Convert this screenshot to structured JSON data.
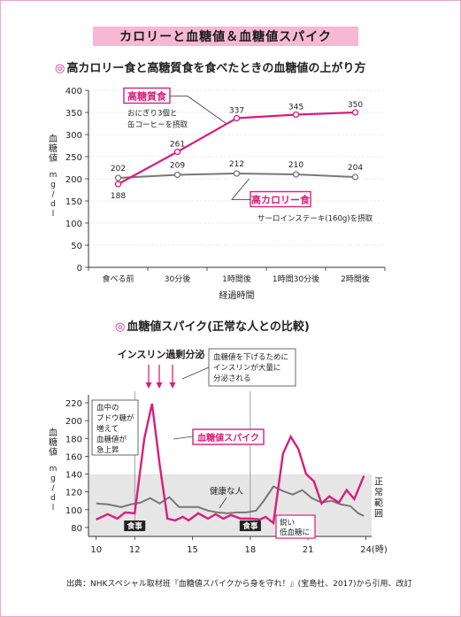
{
  "page_title": "カロリーと血糖値＆血糖値スパイク",
  "section1_title": "高カロリー食と高糖質食を食べたときの血糖値の上がり方",
  "section2_title": "血糖値スパイク(正常な人との比較)",
  "source": "出典：NHKスペシャル取材班『血糖値スパイクから身を守れ！』(宝島社、2017)から引用、改訂",
  "colors": {
    "accent": "#d91e7a",
    "gray_series": "#777777",
    "title_bg": "#f6b8d3",
    "band": "#e6e6e6"
  },
  "chart_data": [
    {
      "type": "line",
      "title": "高カロリー食と高糖質食を食べたときの血糖値の上がり方",
      "xlabel": "経過時間",
      "ylabel": "血糖値(mg/dl)",
      "ylim": [
        0,
        400
      ],
      "yticks": [
        0,
        50,
        100,
        150,
        200,
        250,
        300,
        350,
        400
      ],
      "categories": [
        "食べる前",
        "30分後",
        "1時間後",
        "1時間30分後",
        "2時間後"
      ],
      "series": [
        {
          "name": "高糖質食",
          "note_lines": [
            "おにぎり3個と",
            "缶コーヒーを摂取"
          ],
          "color": "#d91e7a",
          "values": [
            188,
            261,
            337,
            345,
            350
          ]
        },
        {
          "name": "高カロリー食",
          "note_lines": [
            "サーロインステーキ(160g)を摂取"
          ],
          "color": "#777777",
          "values": [
            202,
            209,
            212,
            210,
            204
          ]
        }
      ]
    },
    {
      "type": "line",
      "title": "血糖値スパイク(正常な人との比較)",
      "xlabel": "(時)",
      "ylabel": "血糖値(mg/dl)",
      "ylim": [
        70,
        225
      ],
      "yticks": [
        80,
        100,
        120,
        140,
        160,
        180,
        200,
        220
      ],
      "xticks": [
        "10",
        "12",
        "15",
        "18",
        "21",
        "24(時)"
      ],
      "xtick_values": [
        10,
        12,
        15,
        18,
        21,
        24
      ],
      "xlim": [
        9.6,
        24.3
      ],
      "normal_band": {
        "label": "正常範囲",
        "range": [
          70,
          140
        ]
      },
      "meals": [
        {
          "x": 12,
          "label": "食事"
        },
        {
          "x": 18,
          "label": "食事"
        }
      ],
      "series": [
        {
          "name": "血糖値スパイク",
          "color": "#d91e7a",
          "x": [
            10,
            10.6,
            11.1,
            11.5,
            12.0,
            12.5,
            12.9,
            13.3,
            13.7,
            14.1,
            14.5,
            14.8,
            15.3,
            15.8,
            16.2,
            16.6,
            17.0,
            17.5,
            18.0,
            18.5,
            18.8,
            19.2,
            19.7,
            20.1,
            20.5,
            20.9,
            21.3,
            21.7,
            22.1,
            22.6,
            23.0,
            23.4,
            23.9
          ],
          "y": [
            89,
            95,
            90,
            97,
            96,
            180,
            219,
            150,
            90,
            88,
            92,
            88,
            96,
            90,
            95,
            90,
            94,
            90,
            90,
            89,
            92,
            85,
            163,
            182,
            168,
            140,
            132,
            107,
            115,
            108,
            122,
            112,
            138
          ]
        },
        {
          "name": "健康な人",
          "color": "#777777",
          "x": [
            10,
            10.6,
            11.3,
            11.8,
            12.3,
            12.8,
            13.3,
            13.8,
            14.3,
            14.8,
            15.3,
            15.8,
            16.3,
            16.8,
            17.3,
            17.8,
            18.3,
            18.7,
            19.2,
            19.7,
            20.2,
            20.7,
            21.2,
            21.7,
            22.2,
            22.7,
            23.2,
            23.6,
            23.9
          ],
          "y": [
            107,
            106,
            103,
            106,
            108,
            113,
            107,
            114,
            103,
            103,
            103,
            99,
            97,
            96,
            97,
            97,
            99,
            110,
            126,
            121,
            117,
            122,
            113,
            108,
            110,
            106,
            104,
            96,
            93
          ]
        }
      ],
      "annotations": {
        "insulin": "インスリン過剰分泌",
        "insulin_lower": [
          "血糖値を下げるために",
          "インスリンが大量に",
          "分泌される"
        ],
        "glucose": [
          "血中の",
          "ブドウ糖が",
          "増えて",
          "血糖値が",
          "急上昇"
        ],
        "low": [
          "鋭い",
          "低血糖に"
        ]
      }
    }
  ]
}
